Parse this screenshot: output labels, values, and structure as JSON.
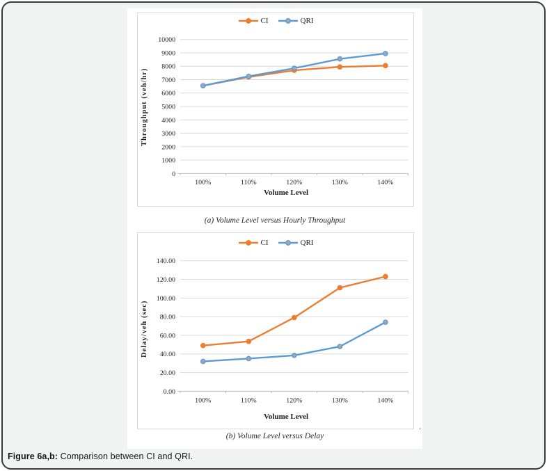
{
  "figure": {
    "caption_prefix": "Figure 6a,b:",
    "caption_text": " Comparison between CI and QRI.",
    "stray_dot": "."
  },
  "colors": {
    "frame_border": "#3a3a3a",
    "frame_bg": "#f2f3f3",
    "panel_bg": "#ffffff",
    "box_border": "#d9d9d9",
    "gridline": "#d9d9d9",
    "axis_line": "#bfbfbf",
    "tick_text": "#262626",
    "ci_orange": "#ED7D31",
    "qri_blue": "#5B9BD5",
    "qri_marker_fill": "#9EA7B2"
  },
  "chart_data": [
    {
      "type": "line",
      "caption": "(a) Volume Level versus Hourly Throughput",
      "xlabel": "Volume Level",
      "ylabel": "Throughput (veh/hr)",
      "categories": [
        "100%",
        "110%",
        "120%",
        "130%",
        "140%"
      ],
      "ylim": [
        0,
        10000
      ],
      "ytick_step": 1000,
      "ytick_labels": [
        "0",
        "1000",
        "2000",
        "3000",
        "4000",
        "5000",
        "6000",
        "7000",
        "8000",
        "9000",
        "10000"
      ],
      "grid": true,
      "legend_position": "top-center",
      "series": [
        {
          "name": "CI",
          "color": "#ED7D31",
          "marker_fill": "#ED7D31",
          "values": [
            6550,
            7200,
            7700,
            7950,
            8050
          ]
        },
        {
          "name": "QRI",
          "color": "#5B9BD5",
          "marker_fill": "#9EA7B2",
          "values": [
            6550,
            7250,
            7850,
            8550,
            8950
          ]
        }
      ]
    },
    {
      "type": "line",
      "caption": "(b) Volume Level versus Delay",
      "xlabel": "Volume Level",
      "ylabel": "Delay/veh (sec)",
      "categories": [
        "100%",
        "110%",
        "120%",
        "130%",
        "140%"
      ],
      "ylim": [
        0,
        140
      ],
      "ytick_step": 20,
      "ytick_labels": [
        "0.00",
        "20.00",
        "40.00",
        "60.00",
        "80.00",
        "100.00",
        "120.00",
        "140.00"
      ],
      "grid": true,
      "legend_position": "top-center",
      "series": [
        {
          "name": "CI",
          "color": "#ED7D31",
          "marker_fill": "#ED7D31",
          "values": [
            49,
            53.5,
            79,
            111,
            123
          ]
        },
        {
          "name": "QRI",
          "color": "#5B9BD5",
          "marker_fill": "#9EA7B2",
          "values": [
            32,
            35,
            38.5,
            48,
            74
          ]
        }
      ]
    }
  ]
}
